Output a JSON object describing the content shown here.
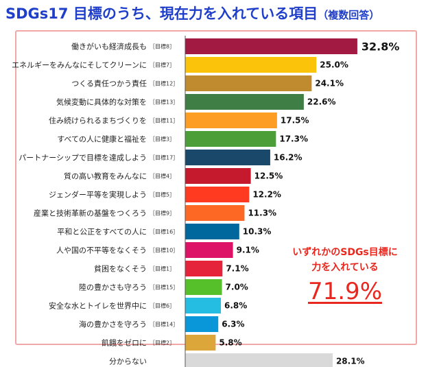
{
  "header": {
    "title": "SDGs17 目標のうち、現在力を入れている項目",
    "subtitle": "（複数回答）"
  },
  "callout": {
    "line1": "いずれかのSDGs目標に",
    "line2": "力を入れている",
    "value": "71.9%"
  },
  "chart_data": {
    "type": "bar",
    "orientation": "horizontal",
    "title": "SDGs17 目標のうち、現在力を入れている項目（複数回答）",
    "value_unit": "%",
    "bars": [
      {
        "label": "働きがいも経済成長も",
        "tag": "［目標8］",
        "value": 32.8,
        "value_label": "32.8%",
        "color": "#a21942",
        "highlight": true
      },
      {
        "label": "エネルギーをみんなにそしてクリーンに",
        "tag": "［目標7］",
        "value": 25.0,
        "value_label": "25.0%",
        "color": "#fcc30b"
      },
      {
        "label": "つくる責任つかう責任",
        "tag": "［目標12］",
        "value": 24.1,
        "value_label": "24.1%",
        "color": "#bf8b2e"
      },
      {
        "label": "気候変動に具体的な対策を",
        "tag": "［目標13］",
        "value": 22.6,
        "value_label": "22.6%",
        "color": "#3f7e44"
      },
      {
        "label": "住み続けられるまちづくりを",
        "tag": "［目標11］",
        "value": 17.5,
        "value_label": "17.5%",
        "color": "#fd9d24"
      },
      {
        "label": "すべての人に健康と福祉を",
        "tag": "［目標3］",
        "value": 17.3,
        "value_label": "17.3%",
        "color": "#4c9f38"
      },
      {
        "label": "パートナーシップで目標を達成しよう",
        "tag": "［目標17］",
        "value": 16.2,
        "value_label": "16.2%",
        "color": "#19486a"
      },
      {
        "label": "質の高い教育をみんなに",
        "tag": "［目標4］",
        "value": 12.5,
        "value_label": "12.5%",
        "color": "#c5192d"
      },
      {
        "label": "ジェンダー平等を実現しよう",
        "tag": "［目標5］",
        "value": 12.2,
        "value_label": "12.2%",
        "color": "#ff3a21"
      },
      {
        "label": "産業と技術革新の基盤をつくろう",
        "tag": "［目標9］",
        "value": 11.3,
        "value_label": "11.3%",
        "color": "#fd6925"
      },
      {
        "label": "平和と公正をすべての人に",
        "tag": "［目標16］",
        "value": 10.3,
        "value_label": "10.3%",
        "color": "#00689d"
      },
      {
        "label": "人や国の不平等をなくそう",
        "tag": "［目標10］",
        "value": 9.1,
        "value_label": "9.1%",
        "color": "#dd1367"
      },
      {
        "label": "貧困をなくそう",
        "tag": "［目標1］",
        "value": 7.1,
        "value_label": "7.1%",
        "color": "#e5243b"
      },
      {
        "label": "陸の豊かさも守ろう",
        "tag": "［目標15］",
        "value": 7.0,
        "value_label": "7.0%",
        "color": "#56c02b"
      },
      {
        "label": "安全な水とトイレを世界中に",
        "tag": "［目標6］",
        "value": 6.8,
        "value_label": "6.8%",
        "color": "#26bde2"
      },
      {
        "label": "海の豊かさを守ろう",
        "tag": "［目標14］",
        "value": 6.3,
        "value_label": "6.3%",
        "color": "#0a97d9"
      },
      {
        "label": "飢餓をゼロに",
        "tag": "［目標2］",
        "value": 5.8,
        "value_label": "5.8%",
        "color": "#dda63a"
      },
      {
        "label": "分からない",
        "tag": "",
        "value": 28.1,
        "value_label": "28.1%",
        "color": "#d9d9d9"
      }
    ]
  }
}
